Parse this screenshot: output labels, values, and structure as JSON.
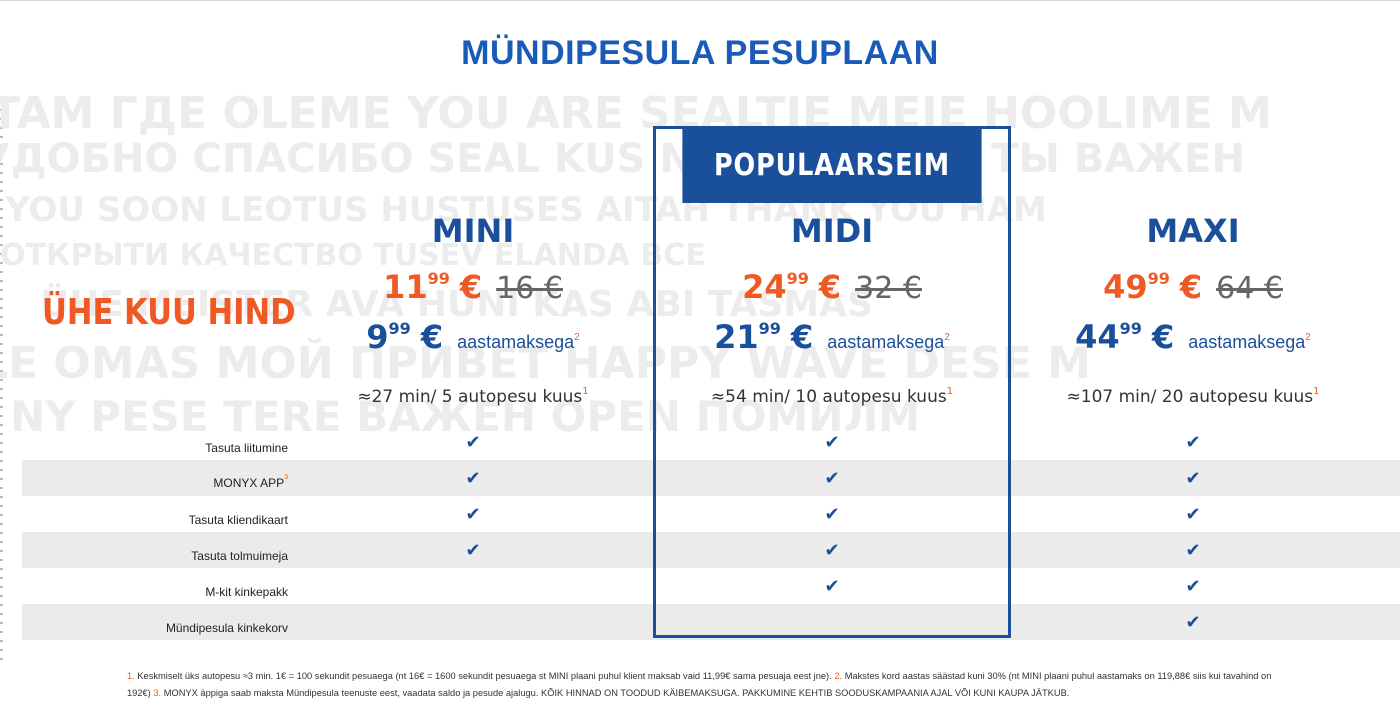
{
  "page_title": "MÜNDIPESULA PESUPLAAN",
  "background_words": [
    "TAM ГДЕ OLEME YOU ARE SEALTJE MEIE HOOLIME M",
    "УДОБНО СПАСИБО SEAL KUS NAD ДРУЖБА ТЫ ВАЖЕН",
    "E YOU SOON   LEOTUS HUSTUSES  AITAH THANK YOU HAM",
    "ОТКРЫТИ  КАЧЕСТВО  TUSEV  ELANDA ВСЕ",
    "ÜHE  MEISTER  AVA  HUNI KAS ABI TASMAS",
    "LE OMAS МОЙ  ПРИВЕТ  HAPPY WAVE DESE M",
    "NY PESE TERE  ВАЖЕН  OPEN  ПОМИЛМ"
  ],
  "row_label_heading": "ÜHE KUU HIND",
  "popular_label": "POPULAARSEIM",
  "plans": [
    {
      "name": "MINI",
      "price_whole": "11",
      "price_cents": "99",
      "currency": "€",
      "old_price": "16 €",
      "year_whole": "9",
      "year_cents": "99",
      "year_label": "aastamaksega",
      "year_note": "2",
      "usage": "≈27 min/ 5 autopesu kuus",
      "usage_note": "1",
      "features": [
        true,
        true,
        true,
        true,
        false,
        false
      ]
    },
    {
      "name": "MIDI",
      "price_whole": "24",
      "price_cents": "99",
      "currency": "€",
      "old_price": "32 €",
      "year_whole": "21",
      "year_cents": "99",
      "year_label": "aastamaksega",
      "year_note": "2",
      "usage": "≈54 min/ 10 autopesu kuus",
      "usage_note": "1",
      "features": [
        true,
        true,
        true,
        true,
        true,
        false
      ]
    },
    {
      "name": "MAXI",
      "price_whole": "49",
      "price_cents": "99",
      "currency": "€",
      "old_price": "64 €",
      "year_whole": "44",
      "year_cents": "99",
      "year_label": "aastamaksega",
      "year_note": "2",
      "usage": "≈107 min/ 20 autopesu kuus",
      "usage_note": "1",
      "features": [
        true,
        true,
        true,
        true,
        true,
        true
      ]
    }
  ],
  "features": [
    {
      "label": "Tasuta liitumine",
      "note": ""
    },
    {
      "label": "MONYX APP",
      "note": "3"
    },
    {
      "label": "Tasuta kliendikaart",
      "note": ""
    },
    {
      "label": "Tasuta tolmuimeja",
      "note": ""
    },
    {
      "label": "M-kit kinkepakk",
      "note": ""
    },
    {
      "label": "Mündipesula kinkekorv",
      "note": ""
    }
  ],
  "check_glyph": "✔",
  "footnotes": {
    "n1": "1.",
    "t1": "Keskmiselt üks autopesu ≈3 min. 1€ = 100 sekundit pesuaega (nt 16€ = 1600 sekundit pesuaega st MINI plaani puhul klient maksab vaid 11,99€ sama pesuaja eest jne).",
    "n2": "2.",
    "t2": "Makstes kord aastas säästad kuni 30% (nt MINI plaani puhul aastamaks on 119,88€ siis kui tavahind on 192€)",
    "n3": "3.",
    "t3": "MONYX äppiga saab maksta Mündipesula teenuste eest, vaadata saldo ja pesude ajalugu.",
    "t4": "KÕIK HINNAD ON TOODUD KÄIBEMAKSUGA. PAKKUMINE KEHTIB SOODUSKAMPAANIA AJAL VÕI KUNI KAUPA JÄTKUB."
  },
  "colors": {
    "blue": "#1a4f9b",
    "orange": "#ef5a24",
    "title_blue": "#1a5ab8",
    "stripe": "#ebebeb"
  }
}
